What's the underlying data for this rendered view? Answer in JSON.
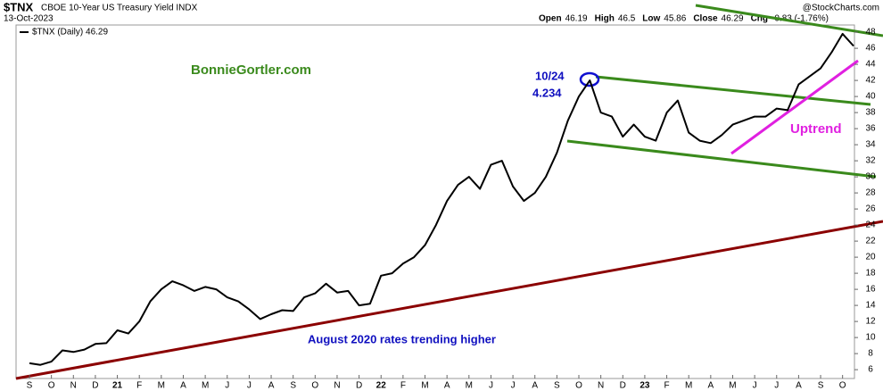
{
  "chart_data": {
    "type": "line",
    "symbol": "$TNX",
    "title": "CBOE 10-Year US Treasury Yield INDX",
    "date": "13-Oct-2023",
    "source": "@StockCharts.com",
    "stats": [
      {
        "label": "Open",
        "value": 46.19
      },
      {
        "label": "High",
        "value": 46.5
      },
      {
        "label": "Low",
        "value": 45.86
      },
      {
        "label": "Close",
        "value": 46.29
      },
      {
        "label": "Chg",
        "value": "-0.83 (-1.76%)"
      }
    ],
    "annotations": [
      "BonnieGortler.com",
      "10/24",
      "4.234",
      "Uptrend",
      "August 2020 rates trending higher"
    ],
    "categories": [
      "S",
      null,
      "O",
      null,
      "N",
      null,
      "D",
      null,
      "21",
      null,
      "F",
      null,
      "M",
      null,
      "A",
      null,
      "M",
      null,
      "J",
      null,
      "J",
      null,
      "A",
      null,
      "S",
      null,
      "O",
      null,
      "N",
      null,
      "D",
      null,
      "22",
      null,
      "F",
      null,
      "M",
      null,
      "A",
      null,
      "M",
      null,
      "J",
      null,
      "J",
      null,
      "A",
      null,
      "S",
      null,
      "O",
      null,
      "N",
      null,
      "D",
      null,
      "23",
      null,
      "F",
      null,
      "M",
      null,
      "A",
      null,
      "M",
      null,
      "J",
      null,
      "J",
      null,
      "A",
      null,
      "S",
      null,
      "O",
      null
    ],
    "series": [
      {
        "name": "$TNX (Daily) 46.29",
        "color": "#000000",
        "values": [
          6.8,
          6.6,
          7.0,
          8.4,
          8.2,
          8.5,
          9.2,
          9.3,
          10.9,
          10.5,
          12.0,
          14.5,
          16.0,
          17.0,
          16.5,
          15.8,
          16.3,
          16.0,
          15.0,
          14.5,
          13.5,
          12.3,
          12.9,
          13.4,
          13.3,
          15.0,
          15.5,
          16.7,
          15.6,
          15.8,
          14.0,
          14.2,
          17.7,
          18.0,
          19.2,
          20.0,
          21.5,
          24.0,
          27.0,
          29.0,
          30.0,
          28.5,
          31.5,
          32.0,
          28.8,
          27.0,
          28.0,
          30.0,
          33.0,
          37.0,
          40.0,
          42.0,
          38.0,
          37.5,
          35.0,
          36.5,
          35.0,
          34.5,
          38.0,
          39.5,
          35.5,
          34.5,
          34.2,
          35.2,
          36.5,
          37.0,
          37.5,
          37.5,
          38.5,
          38.3,
          41.5,
          42.5,
          43.5,
          45.5,
          47.8,
          46.29
        ]
      }
    ],
    "ylim": [
      4.9,
      48.9
    ],
    "yticks": [
      6,
      8,
      10,
      12,
      14,
      16,
      18,
      20,
      22,
      24,
      26,
      28,
      30,
      32,
      34,
      36,
      38,
      40,
      42,
      44,
      46,
      48
    ],
    "grid": false
  }
}
